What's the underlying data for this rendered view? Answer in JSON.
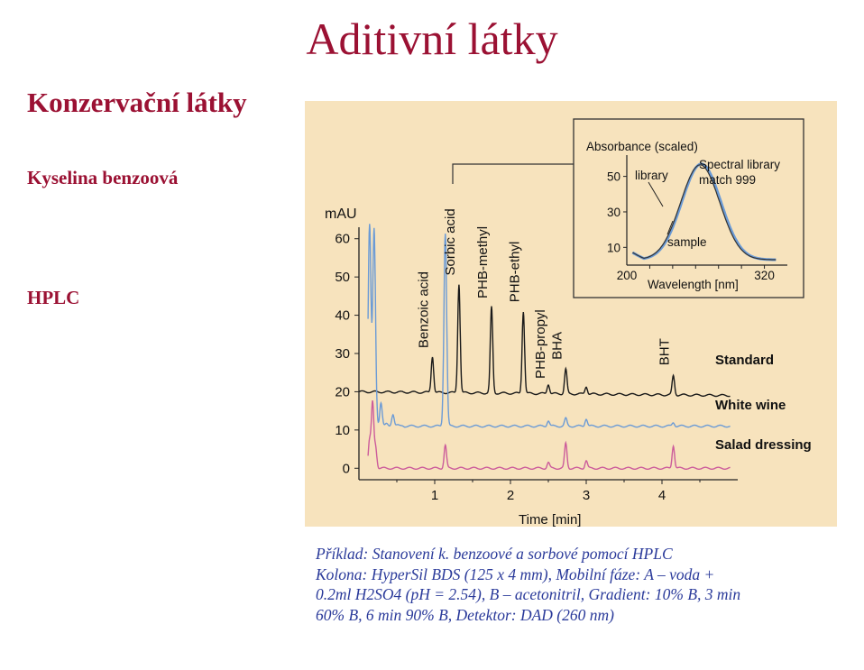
{
  "slide": {
    "title": "Aditivní látky",
    "heading": "Konzervační látky",
    "subheading": "Kyselina benzoová",
    "method": "HPLC"
  },
  "caption": {
    "lines": [
      "Příklad: Stanovení k. benzoové a sorbové pomocí HPLC",
      "Kolona: HyperSil BDS (125 x 4 mm), Mobilní fáze: A – voda +",
      "0.2ml H2SO4 (pH = 2.54), B – acetonitril, Gradient: 10% B, 3 min",
      "60% B, 6 min 90% B, Detektor: DAD (260 nm)"
    ]
  },
  "chart_data": [
    {
      "type": "line",
      "title": "",
      "xlabel": "Time [min]",
      "ylabel": "mAU",
      "xlim": [
        0,
        5
      ],
      "ylim": [
        -3,
        63
      ],
      "xticks": [
        1,
        2,
        3,
        4
      ],
      "yticks": [
        0,
        10,
        20,
        30,
        40,
        50,
        60
      ],
      "grid": false,
      "series": [
        {
          "name": "Standard",
          "color": "#1a1a1a",
          "baseline": 20,
          "peaks": [
            {
              "x": 0.97,
              "y": 29.5,
              "label": "Benzoic acid"
            },
            {
              "x": 1.32,
              "y": 48.5,
              "label": "Sorbic acid"
            },
            {
              "x": 1.75,
              "y": 42.5,
              "label": "PHB-methyl"
            },
            {
              "x": 2.17,
              "y": 41.5,
              "label": "PHB-ethyl"
            },
            {
              "x": 2.5,
              "y": 22.5,
              "label": ""
            },
            {
              "x": 2.73,
              "y": 26.5,
              "label": "BHA"
            },
            {
              "x": 3.0,
              "y": 22.0,
              "label": ""
            },
            {
              "x": 4.15,
              "y": 25.0,
              "label": "BHT"
            }
          ]
        },
        {
          "name": "White wine",
          "color": "#6b9bd6",
          "baseline": 11,
          "peaks": [
            {
              "x": 0.14,
              "y": 62.5,
              "label": ""
            },
            {
              "x": 0.2,
              "y": 62.0,
              "label": ""
            },
            {
              "x": 0.29,
              "y": 16.5,
              "label": ""
            },
            {
              "x": 0.45,
              "y": 14.0,
              "label": ""
            },
            {
              "x": 1.14,
              "y": 61.5,
              "label": ""
            },
            {
              "x": 2.5,
              "y": 12.5,
              "label": ""
            },
            {
              "x": 2.73,
              "y": 13.0,
              "label": ""
            },
            {
              "x": 3.0,
              "y": 13.0,
              "label": ""
            },
            {
              "x": 4.15,
              "y": 12.0,
              "label": ""
            }
          ]
        },
        {
          "name": "Salad dressing",
          "color": "#cc5c9b",
          "baseline": 0,
          "peaks": [
            {
              "x": 0.14,
              "y": 7.0,
              "label": ""
            },
            {
              "x": 0.18,
              "y": 17.0,
              "label": ""
            },
            {
              "x": 0.22,
              "y": 5.5,
              "label": ""
            },
            {
              "x": 1.14,
              "y": 6.0,
              "label": ""
            },
            {
              "x": 2.5,
              "y": 1.5,
              "label": ""
            },
            {
              "x": 2.73,
              "y": 6.5,
              "label": ""
            },
            {
              "x": 3.0,
              "y": 2.0,
              "label": ""
            },
            {
              "x": 4.15,
              "y": 6.0,
              "label": ""
            }
          ]
        }
      ],
      "extra_labels": [
        "PHB-propyl"
      ]
    },
    {
      "type": "line",
      "title": "Absorbance (scaled)",
      "xlabel": "Wavelength [nm]",
      "xlim": [
        200,
        340
      ],
      "ylim": [
        0,
        62
      ],
      "xticks": [
        200,
        320
      ],
      "yticks": [
        10,
        30,
        50
      ],
      "grid": false,
      "annotations": [
        "library",
        "Spectral library match 999",
        "sample"
      ],
      "series": [
        {
          "name": "library",
          "color": "#6b9bd6",
          "peak_x": 265,
          "peak_y": 57,
          "baseline_y": 3
        },
        {
          "name": "sample",
          "color": "#333333",
          "peak_x": 264,
          "peak_y": 56.5,
          "baseline_y": 3
        }
      ]
    }
  ]
}
